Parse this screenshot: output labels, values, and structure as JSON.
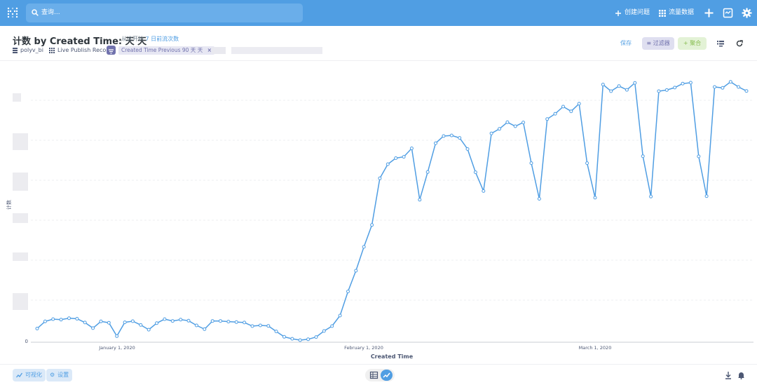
{
  "topbar": {
    "search_placeholder": "查询...",
    "new_question": "创建问题",
    "browse_data": "流量数据"
  },
  "header": {
    "title": "计数 by Created Time: 天 天",
    "subtitle_prefix": "从这开始",
    "subtitle_link": "7 日前流次数",
    "database": "polyv_bi",
    "table": "Live Publish Record",
    "filter_pill": "Created Time Previous 90 天 天",
    "save_label": "保存",
    "filter_label": "过滤器",
    "summarize_label": "聚合"
  },
  "footer": {
    "visualize_label": "可视化",
    "settings_label": "设置"
  },
  "colors": {
    "brand": "#509ee3",
    "filter": "#7172ad",
    "summarize": "#84bb4c"
  },
  "chart_data": {
    "type": "line",
    "xlabel": "Created Time",
    "ylabel": "计数",
    "x_ticks": [
      "January 1, 2020",
      "February 1, 2020",
      "March 1, 2020"
    ],
    "y_tick_zero": "0",
    "series": [
      {
        "values": [
          0.055,
          0.087,
          0.097,
          0.095,
          0.101,
          0.099,
          0.082,
          0.057,
          0.087,
          0.081,
          0.021,
          0.083,
          0.088,
          0.071,
          0.05,
          0.079,
          0.097,
          0.089,
          0.095,
          0.09,
          0.069,
          0.052,
          0.089,
          0.089,
          0.086,
          0.084,
          0.082,
          0.066,
          0.069,
          0.067,
          0.042,
          0.018,
          0.009,
          0.003,
          0.007,
          0.017,
          0.044,
          0.066,
          0.113,
          0.221,
          0.314,
          0.421,
          0.519,
          0.728,
          0.791,
          0.818,
          0.824,
          0.862,
          0.632,
          0.756,
          0.885,
          0.917,
          0.92,
          0.909,
          0.859,
          0.755,
          0.671,
          0.929,
          0.949,
          0.979,
          0.961,
          0.978,
          0.796,
          0.636,
          0.993,
          1.017,
          1.049,
          1.028,
          1.062,
          0.796,
          0.641,
          1.148,
          1.118,
          1.141,
          1.124,
          1.155,
          0.827,
          0.646,
          1.118,
          1.123,
          1.134,
          1.152,
          1.156,
          0.826,
          0.648,
          1.137,
          1.133,
          1.16,
          1.137,
          1.119
        ]
      }
    ],
    "ylim": [
      0,
      1.25
    ]
  }
}
